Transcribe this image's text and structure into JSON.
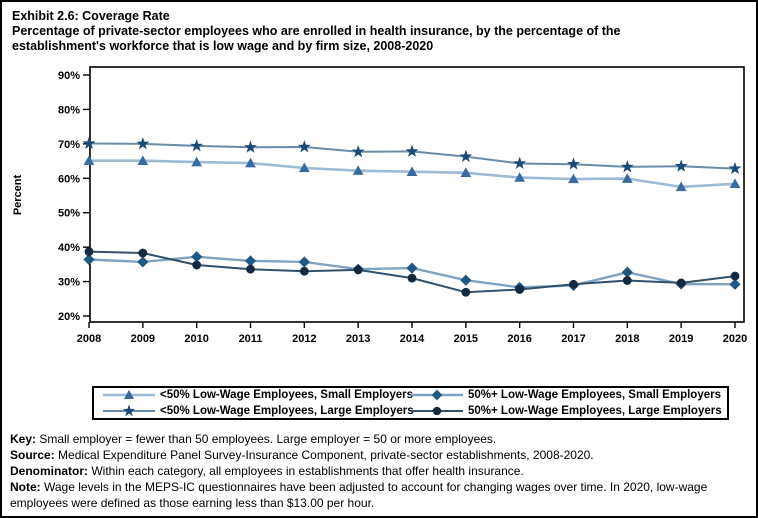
{
  "title": "Exhibit 2.6: Coverage Rate",
  "subtitle": "Percentage of private-sector employees who are enrolled in health insurance, by the percentage of the establishment's workforce that is low wage and by firm size, 2008-2020",
  "chart_data": {
    "type": "line",
    "x": [
      2008,
      2009,
      2010,
      2011,
      2012,
      2013,
      2014,
      2015,
      2016,
      2017,
      2018,
      2019,
      2020
    ],
    "series": [
      {
        "name": "<50% Low-Wage Employees, Small Employers",
        "marker": "triangle",
        "line_color": "#9db9d3",
        "marker_color": "#3a6ba0",
        "line_width": 2.6,
        "values": [
          65.1,
          65.1,
          64.7,
          64.4,
          63.0,
          62.2,
          61.9,
          61.6,
          60.2,
          59.8,
          59.9,
          57.5,
          58.4
        ]
      },
      {
        "name": "<50% Low-Wage Employees, Large Employers",
        "marker": "star",
        "line_color": "#6b8ca8",
        "marker_color": "#1c4a74",
        "line_width": 2.0,
        "values": [
          70.1,
          70.0,
          69.4,
          69.0,
          69.1,
          67.7,
          67.8,
          66.3,
          64.3,
          64.1,
          63.3,
          63.5,
          62.8
        ]
      },
      {
        "name": "50%+ Low-Wage Employees, Small Employers",
        "marker": "diamond",
        "line_color": "#7fa3c1",
        "marker_color": "#1f5881",
        "line_width": 2.4,
        "values": [
          36.4,
          35.7,
          37.2,
          36.0,
          35.7,
          33.6,
          33.9,
          30.4,
          28.3,
          28.9,
          32.7,
          29.3,
          29.2
        ]
      },
      {
        "name": "50%+ Low-Wage Employees, Large Employers",
        "marker": "circle",
        "line_color": "#31506c",
        "marker_color": "#132a41",
        "line_width": 2.0,
        "values": [
          38.7,
          38.3,
          34.8,
          33.6,
          33.0,
          33.4,
          31.0,
          26.9,
          27.7,
          29.2,
          30.3,
          29.6,
          31.6
        ]
      }
    ],
    "title": "Exhibit 2.6: Coverage Rate",
    "xlabel": "",
    "ylabel": "Percent",
    "ylim": [
      20,
      90
    ],
    "ytick_step": 10,
    "ytick_suffix": "%",
    "grid": false,
    "legend_position": "bottom"
  },
  "legend": {
    "items": [
      {
        "label": "<50% Low-Wage Employees, Small Employers",
        "marker": "triangle"
      },
      {
        "label": "50%+ Low-Wage Employees, Small Employers",
        "marker": "diamond"
      },
      {
        "label": "<50% Low-Wage Employees, Large Employers",
        "marker": "star"
      },
      {
        "label": "50%+ Low-Wage Employees, Large Employers",
        "marker": "circle"
      }
    ]
  },
  "footer": {
    "notes": [
      {
        "label": "Key:",
        "text": " Small employer = fewer than 50 employees. Large employer = 50 or more employees."
      },
      {
        "label": "Source:",
        "text": " Medical Expenditure Panel Survey-Insurance Component, private-sector establishments, 2008-2020."
      },
      {
        "label": "Denominator:",
        "text": " Within each category, all employees in establishments that offer health insurance."
      },
      {
        "label": "Note:",
        "text": " Wage levels in the MEPS-IC questionnaires have been adjusted to account for changing wages over time. In 2020, low-wage employees were defined as those earning less than $13.00 per hour."
      }
    ]
  }
}
